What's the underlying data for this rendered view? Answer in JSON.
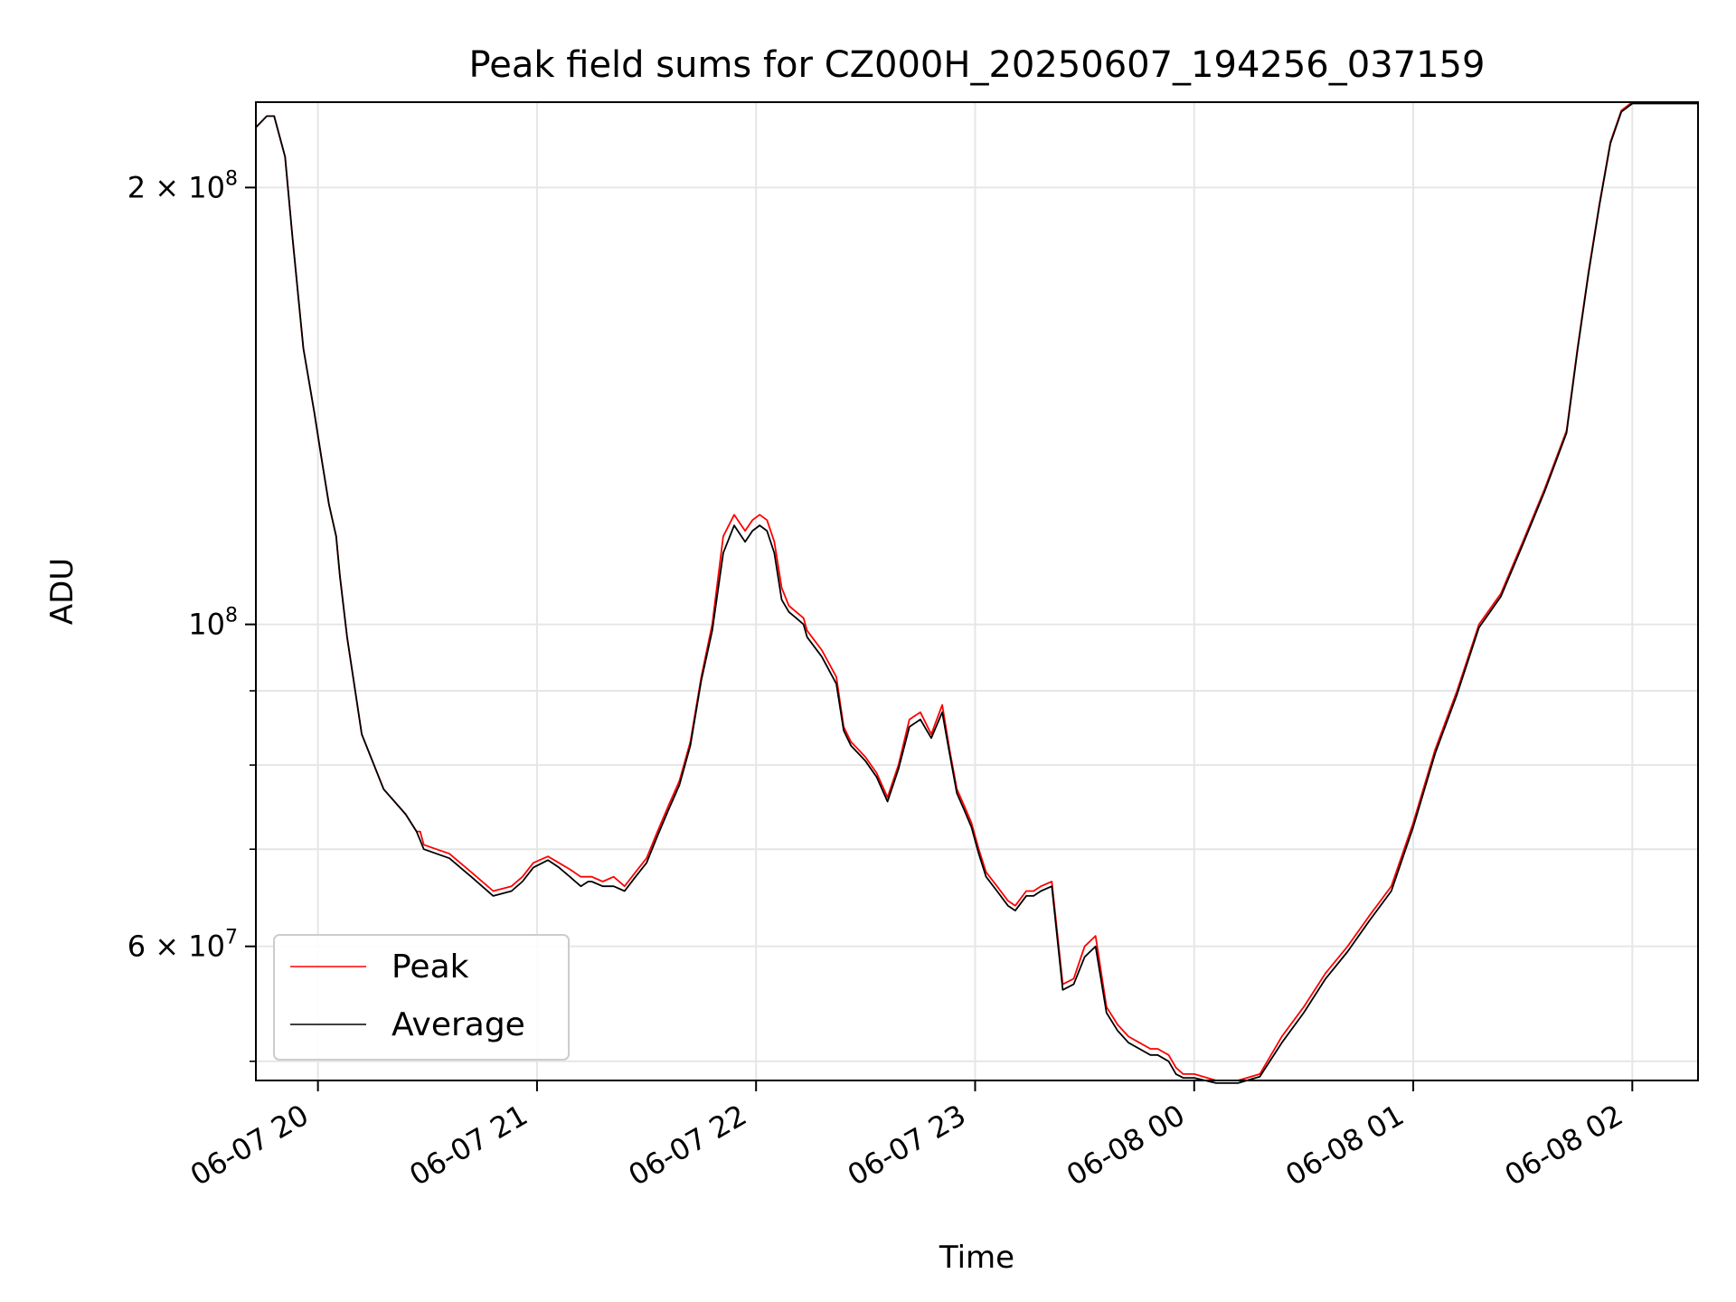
{
  "chart_data": {
    "type": "line",
    "title": "Peak field sums for CZ000H_20250607_194256_037159",
    "xlabel": "Time",
    "ylabel": "ADU",
    "yscale": "log",
    "grid": true,
    "legend_position": "lower-left",
    "xlim": [
      "2025-06-07 19:43",
      "2025-06-08 02:18"
    ],
    "ylim": [
      48500000,
      229000000
    ],
    "x_ticks": [
      {
        "at": "2025-06-07 20:00",
        "label": "06-07 20"
      },
      {
        "at": "2025-06-07 21:00",
        "label": "06-07 21"
      },
      {
        "at": "2025-06-07 22:00",
        "label": "06-07 22"
      },
      {
        "at": "2025-06-07 23:00",
        "label": "06-07 23"
      },
      {
        "at": "2025-06-08 00:00",
        "label": "06-08 00"
      },
      {
        "at": "2025-06-08 01:00",
        "label": "06-08 01"
      },
      {
        "at": "2025-06-08 02:00",
        "label": "06-08 02"
      }
    ],
    "y_major_ticks": [
      {
        "value": 60000000,
        "base": "6 × 10",
        "exp": "7"
      },
      {
        "value": 100000000,
        "base": "10",
        "exp": "8"
      },
      {
        "value": 200000000,
        "base": "2 × 10",
        "exp": "8"
      }
    ],
    "y_minor_ticks": [
      50000000,
      70000000,
      80000000,
      90000000
    ],
    "series": [
      {
        "name": "Peak",
        "color": "#ff0000",
        "x": [
          "2025-06-07 19:43",
          "2025-06-07 19:46",
          "2025-06-07 19:48",
          "2025-06-07 19:51",
          "2025-06-07 19:53",
          "2025-06-07 19:56",
          "2025-06-07 19:59",
          "2025-06-07 20:01",
          "2025-06-07 20:03",
          "2025-06-07 20:05",
          "2025-06-07 20:06",
          "2025-06-07 20:08",
          "2025-06-07 20:12",
          "2025-06-07 20:18",
          "2025-06-07 20:24",
          "2025-06-07 20:27",
          "2025-06-07 20:28",
          "2025-06-07 20:29",
          "2025-06-07 20:36",
          "2025-06-07 20:42",
          "2025-06-07 20:48",
          "2025-06-07 20:53",
          "2025-06-07 20:56",
          "2025-06-07 20:59",
          "2025-06-07 21:03",
          "2025-06-07 21:06",
          "2025-06-07 21:09",
          "2025-06-07 21:12",
          "2025-06-07 21:14",
          "2025-06-07 21:15",
          "2025-06-07 21:18",
          "2025-06-07 21:21",
          "2025-06-07 21:24",
          "2025-06-07 21:27",
          "2025-06-07 21:30",
          "2025-06-07 21:33",
          "2025-06-07 21:36",
          "2025-06-07 21:39",
          "2025-06-07 21:42",
          "2025-06-07 21:45",
          "2025-06-07 21:48",
          "2025-06-07 21:51",
          "2025-06-07 21:54",
          "2025-06-07 21:55",
          "2025-06-07 21:57",
          "2025-06-07 21:59",
          "2025-06-07 22:01",
          "2025-06-07 22:03",
          "2025-06-07 22:05",
          "2025-06-07 22:07",
          "2025-06-07 22:09",
          "2025-06-07 22:11",
          "2025-06-07 22:13",
          "2025-06-07 22:14",
          "2025-06-07 22:18",
          "2025-06-07 22:22",
          "2025-06-07 22:24",
          "2025-06-07 22:26",
          "2025-06-07 22:28",
          "2025-06-07 22:30",
          "2025-06-07 22:33",
          "2025-06-07 22:36",
          "2025-06-07 22:39",
          "2025-06-07 22:42",
          "2025-06-07 22:45",
          "2025-06-07 22:48",
          "2025-06-07 22:51",
          "2025-06-07 22:53",
          "2025-06-07 22:55",
          "2025-06-07 22:57",
          "2025-06-07 22:59",
          "2025-06-07 23:01",
          "2025-06-07 23:03",
          "2025-06-07 23:06",
          "2025-06-07 23:09",
          "2025-06-07 23:11",
          "2025-06-07 23:14",
          "2025-06-07 23:16",
          "2025-06-07 23:18",
          "2025-06-07 23:21",
          "2025-06-07 23:24",
          "2025-06-07 23:27",
          "2025-06-07 23:30",
          "2025-06-07 23:33",
          "2025-06-07 23:36",
          "2025-06-07 23:39",
          "2025-06-07 23:42",
          "2025-06-07 23:45",
          "2025-06-07 23:48",
          "2025-06-07 23:50",
          "2025-06-07 23:53",
          "2025-06-07 23:55",
          "2025-06-07 23:57",
          "2025-06-08 00:00",
          "2025-06-08 00:06",
          "2025-06-08 00:12",
          "2025-06-08 00:18",
          "2025-06-08 00:24",
          "2025-06-08 00:30",
          "2025-06-08 00:36",
          "2025-06-08 00:42",
          "2025-06-08 00:48",
          "2025-06-08 00:54",
          "2025-06-08 01:00",
          "2025-06-08 01:06",
          "2025-06-08 01:12",
          "2025-06-08 01:18",
          "2025-06-08 01:24",
          "2025-06-08 01:30",
          "2025-06-08 01:36",
          "2025-06-08 01:42",
          "2025-06-08 01:45",
          "2025-06-08 01:48",
          "2025-06-08 01:51",
          "2025-06-08 01:54",
          "2025-06-08 01:57",
          "2025-06-08 02:00",
          "2025-06-08 02:03",
          "2025-06-08 02:06",
          "2025-06-08 02:09",
          "2025-06-08 02:12",
          "2025-06-08 02:15",
          "2025-06-08 02:18"
        ],
        "values": [
          220000000,
          224000000,
          224000000,
          210000000,
          185000000,
          155000000,
          140000000,
          130000000,
          121000000,
          115000000,
          108000000,
          98000000,
          84000000,
          77000000,
          74000000,
          72000000,
          72000000,
          70500000,
          69500000,
          67500000,
          65500000,
          66000000,
          67000000,
          68500000,
          69200000,
          68500000,
          67800000,
          67000000,
          67000000,
          67000000,
          66500000,
          67000000,
          66000000,
          67500000,
          69000000,
          72000000,
          75000000,
          78000000,
          83000000,
          92000000,
          100000000,
          115000000,
          119000000,
          118000000,
          116000000,
          118000000,
          119000000,
          118000000,
          114000000,
          106000000,
          103000000,
          102000000,
          101000000,
          99000000,
          96000000,
          92000000,
          85000000,
          83000000,
          82000000,
          81000000,
          79000000,
          76000000,
          80000000,
          86000000,
          87000000,
          84000000,
          88000000,
          82000000,
          77000000,
          75000000,
          73000000,
          70000000,
          67500000,
          66000000,
          64500000,
          64000000,
          65500000,
          65500000,
          66000000,
          66500000,
          56500000,
          57000000,
          60000000,
          61000000,
          54500000,
          53000000,
          52000000,
          51500000,
          51000000,
          51000000,
          50500000,
          49500000,
          49000000,
          49000000,
          48500000,
          48500000,
          49000000,
          52000000,
          54500000,
          57500000,
          60000000,
          63000000,
          66000000,
          73000000,
          82000000,
          90000000,
          100000000,
          105000000,
          114000000,
          124000000,
          136000000,
          155000000,
          175000000,
          195000000,
          215000000,
          226000000,
          229000000,
          229000000,
          229000000,
          229000000,
          229000000,
          229000000,
          229000000
        ]
      },
      {
        "name": "Average",
        "color": "#000000",
        "x": [
          "2025-06-07 19:43",
          "2025-06-07 19:46",
          "2025-06-07 19:48",
          "2025-06-07 19:51",
          "2025-06-07 19:53",
          "2025-06-07 19:56",
          "2025-06-07 19:59",
          "2025-06-07 20:01",
          "2025-06-07 20:03",
          "2025-06-07 20:05",
          "2025-06-07 20:06",
          "2025-06-07 20:08",
          "2025-06-07 20:12",
          "2025-06-07 20:18",
          "2025-06-07 20:24",
          "2025-06-07 20:27",
          "2025-06-07 20:28",
          "2025-06-07 20:29",
          "2025-06-07 20:36",
          "2025-06-07 20:42",
          "2025-06-07 20:48",
          "2025-06-07 20:53",
          "2025-06-07 20:56",
          "2025-06-07 20:59",
          "2025-06-07 21:03",
          "2025-06-07 21:06",
          "2025-06-07 21:09",
          "2025-06-07 21:12",
          "2025-06-07 21:14",
          "2025-06-07 21:15",
          "2025-06-07 21:18",
          "2025-06-07 21:21",
          "2025-06-07 21:24",
          "2025-06-07 21:27",
          "2025-06-07 21:30",
          "2025-06-07 21:33",
          "2025-06-07 21:36",
          "2025-06-07 21:39",
          "2025-06-07 21:42",
          "2025-06-07 21:45",
          "2025-06-07 21:48",
          "2025-06-07 21:51",
          "2025-06-07 21:54",
          "2025-06-07 21:55",
          "2025-06-07 21:57",
          "2025-06-07 21:59",
          "2025-06-07 22:01",
          "2025-06-07 22:03",
          "2025-06-07 22:05",
          "2025-06-07 22:07",
          "2025-06-07 22:09",
          "2025-06-07 22:11",
          "2025-06-07 22:13",
          "2025-06-07 22:14",
          "2025-06-07 22:18",
          "2025-06-07 22:22",
          "2025-06-07 22:24",
          "2025-06-07 22:26",
          "2025-06-07 22:28",
          "2025-06-07 22:30",
          "2025-06-07 22:33",
          "2025-06-07 22:36",
          "2025-06-07 22:39",
          "2025-06-07 22:42",
          "2025-06-07 22:45",
          "2025-06-07 22:48",
          "2025-06-07 22:51",
          "2025-06-07 22:53",
          "2025-06-07 22:55",
          "2025-06-07 22:57",
          "2025-06-07 22:59",
          "2025-06-07 23:01",
          "2025-06-07 23:03",
          "2025-06-07 23:06",
          "2025-06-07 23:09",
          "2025-06-07 23:11",
          "2025-06-07 23:14",
          "2025-06-07 23:16",
          "2025-06-07 23:18",
          "2025-06-07 23:21",
          "2025-06-07 23:24",
          "2025-06-07 23:27",
          "2025-06-07 23:30",
          "2025-06-07 23:33",
          "2025-06-07 23:36",
          "2025-06-07 23:39",
          "2025-06-07 23:42",
          "2025-06-07 23:45",
          "2025-06-07 23:48",
          "2025-06-07 23:50",
          "2025-06-07 23:53",
          "2025-06-07 23:55",
          "2025-06-07 23:57",
          "2025-06-08 00:00",
          "2025-06-08 00:06",
          "2025-06-08 00:12",
          "2025-06-08 00:18",
          "2025-06-08 00:24",
          "2025-06-08 00:30",
          "2025-06-08 00:36",
          "2025-06-08 00:42",
          "2025-06-08 00:48",
          "2025-06-08 00:54",
          "2025-06-08 01:00",
          "2025-06-08 01:06",
          "2025-06-08 01:12",
          "2025-06-08 01:18",
          "2025-06-08 01:24",
          "2025-06-08 01:30",
          "2025-06-08 01:36",
          "2025-06-08 01:42",
          "2025-06-08 01:45",
          "2025-06-08 01:48",
          "2025-06-08 01:51",
          "2025-06-08 01:54",
          "2025-06-08 01:57",
          "2025-06-08 02:00",
          "2025-06-08 02:03",
          "2025-06-08 02:06",
          "2025-06-08 02:09",
          "2025-06-08 02:12",
          "2025-06-08 02:15",
          "2025-06-08 02:18"
        ],
        "values": [
          220000000,
          224000000,
          224000000,
          210000000,
          185000000,
          155000000,
          140000000,
          130000000,
          121000000,
          115000000,
          108000000,
          98000000,
          84000000,
          77000000,
          74000000,
          72000000,
          71000000,
          70000000,
          69000000,
          67000000,
          65000000,
          65500000,
          66500000,
          68000000,
          68800000,
          68000000,
          67000000,
          66000000,
          66500000,
          66500000,
          66000000,
          66000000,
          65500000,
          67000000,
          68500000,
          71500000,
          74500000,
          77500000,
          82500000,
          91500000,
          99000000,
          112000000,
          117000000,
          116000000,
          114000000,
          116000000,
          117000000,
          116000000,
          112000000,
          104000000,
          102000000,
          101000000,
          100000000,
          98000000,
          95000000,
          91000000,
          84500000,
          82500000,
          81500000,
          80500000,
          78500000,
          75500000,
          79500000,
          85000000,
          86000000,
          83500000,
          87000000,
          81500000,
          76500000,
          74500000,
          72500000,
          69500000,
          67000000,
          65500000,
          64000000,
          63500000,
          65000000,
          65000000,
          65500000,
          66000000,
          56000000,
          56500000,
          59000000,
          60000000,
          54000000,
          52500000,
          51500000,
          51000000,
          50500000,
          50500000,
          50000000,
          49000000,
          48700000,
          48700000,
          48300000,
          48300000,
          48800000,
          51500000,
          54000000,
          57000000,
          59500000,
          62500000,
          65500000,
          72500000,
          81500000,
          89500000,
          99500000,
          104500000,
          113500000,
          123500000,
          135500000,
          154500000,
          174500000,
          194500000,
          214500000,
          225500000,
          228500000,
          228500000,
          228500000,
          228500000,
          228500000,
          228500000,
          228500000
        ]
      }
    ]
  }
}
